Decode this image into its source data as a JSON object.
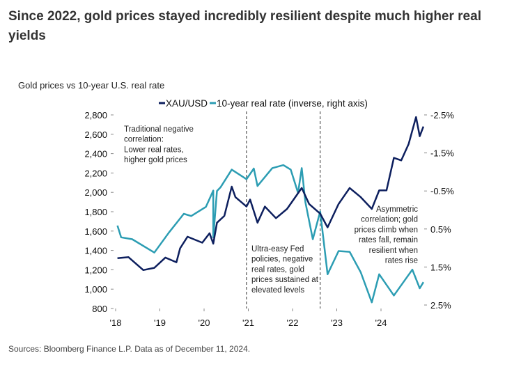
{
  "title": "Since 2022, gold prices stayed incredibly resilient despite much higher real yields",
  "source": "Sources: Bloomberg Finance L.P. Data as of December 11, 2024.",
  "chart_data": {
    "type": "line",
    "title": "Gold prices vs 10-year U.S. real rate",
    "colors": {
      "gold": "#0d1f5e",
      "real_rate": "#2c9db3"
    },
    "x_ticks": [
      "'18",
      "'19",
      "'20",
      "'21",
      "'22",
      "'23",
      "'24"
    ],
    "y_left": {
      "ticks": [
        "2,800",
        "2,600",
        "2,400",
        "2,200",
        "2,000",
        "1,800",
        "1,600",
        "1,400",
        "1,200",
        "1,000",
        "800"
      ],
      "range": [
        800,
        2800
      ]
    },
    "y_right": {
      "ticks": [
        "-2.5%",
        "-1.5%",
        "-0.5%",
        "0.5%",
        "1.5%",
        "2.5%"
      ],
      "range": [
        -2.5,
        2.5
      ],
      "inverted": true
    },
    "vlines": [
      "2020-12",
      "2022-08"
    ],
    "annotations": [
      {
        "lines": [
          "Traditional negative",
          "correlation:",
          "Lower real rates,",
          "higher gold prices"
        ]
      },
      {
        "lines": [
          "Ultra-easy Fed",
          "policies, negative",
          "real rates, gold",
          "prices sustained at",
          "elevated levels"
        ]
      },
      {
        "lines": [
          "Asymmetric",
          "correlation; gold",
          "prices climb when",
          "rates fall, remain",
          "resilient when",
          "rates rise"
        ]
      }
    ],
    "series": [
      {
        "name": "XAU/USD",
        "axis": "left",
        "x": [
          "2018-01",
          "2018-04",
          "2018-08",
          "2018-11",
          "2019-02",
          "2019-05",
          "2019-06",
          "2019-08",
          "2019-12",
          "2020-02",
          "2020-03",
          "2020-04",
          "2020-06",
          "2020-08",
          "2020-09",
          "2020-12",
          "2021-01",
          "2021-03",
          "2021-05",
          "2021-08",
          "2021-11",
          "2022-03",
          "2022-05",
          "2022-08",
          "2022-10",
          "2023-01",
          "2023-04",
          "2023-07",
          "2023-10",
          "2023-12",
          "2024-02",
          "2024-04",
          "2024-06",
          "2024-08",
          "2024-10",
          "2024-11",
          "2024-12"
        ],
        "values": [
          1320,
          1330,
          1197,
          1220,
          1326,
          1278,
          1422,
          1542,
          1480,
          1578,
          1470,
          1686,
          1757,
          2059,
          1950,
          1853,
          1925,
          1686,
          1853,
          1733,
          1829,
          2045,
          1880,
          1780,
          1638,
          1880,
          2045,
          1950,
          1829,
          2020,
          2020,
          2356,
          2330,
          2500,
          2778,
          2580,
          2680
        ]
      },
      {
        "name": "10-year real rate (inverse, right axis)",
        "axis": "right",
        "x": [
          "2018-01",
          "2018-02",
          "2018-05",
          "2018-11",
          "2019-03",
          "2019-07",
          "2019-09",
          "2020-01",
          "2020-03",
          "2020-03",
          "2020-04",
          "2020-05",
          "2020-08",
          "2020-12",
          "2021-02",
          "2021-03",
          "2021-07",
          "2021-10",
          "2021-12",
          "2022-02",
          "2022-03",
          "2022-04",
          "2022-06",
          "2022-08",
          "2022-10",
          "2023-01",
          "2023-04",
          "2023-07",
          "2023-10",
          "2023-12",
          "2024-04",
          "2024-09",
          "2024-11",
          "2024-12"
        ],
        "values": [
          0.41,
          0.72,
          0.77,
          1.12,
          0.59,
          0.1,
          0.16,
          -0.08,
          -0.51,
          0.72,
          -0.5,
          -0.6,
          -1.06,
          -0.81,
          -1.09,
          -0.63,
          -1.1,
          -1.18,
          -1.06,
          -0.45,
          -1.1,
          -0.2,
          0.77,
          0.04,
          1.69,
          1.08,
          1.1,
          1.64,
          2.43,
          1.69,
          2.25,
          1.57,
          2.06,
          1.9
        ]
      }
    ]
  }
}
